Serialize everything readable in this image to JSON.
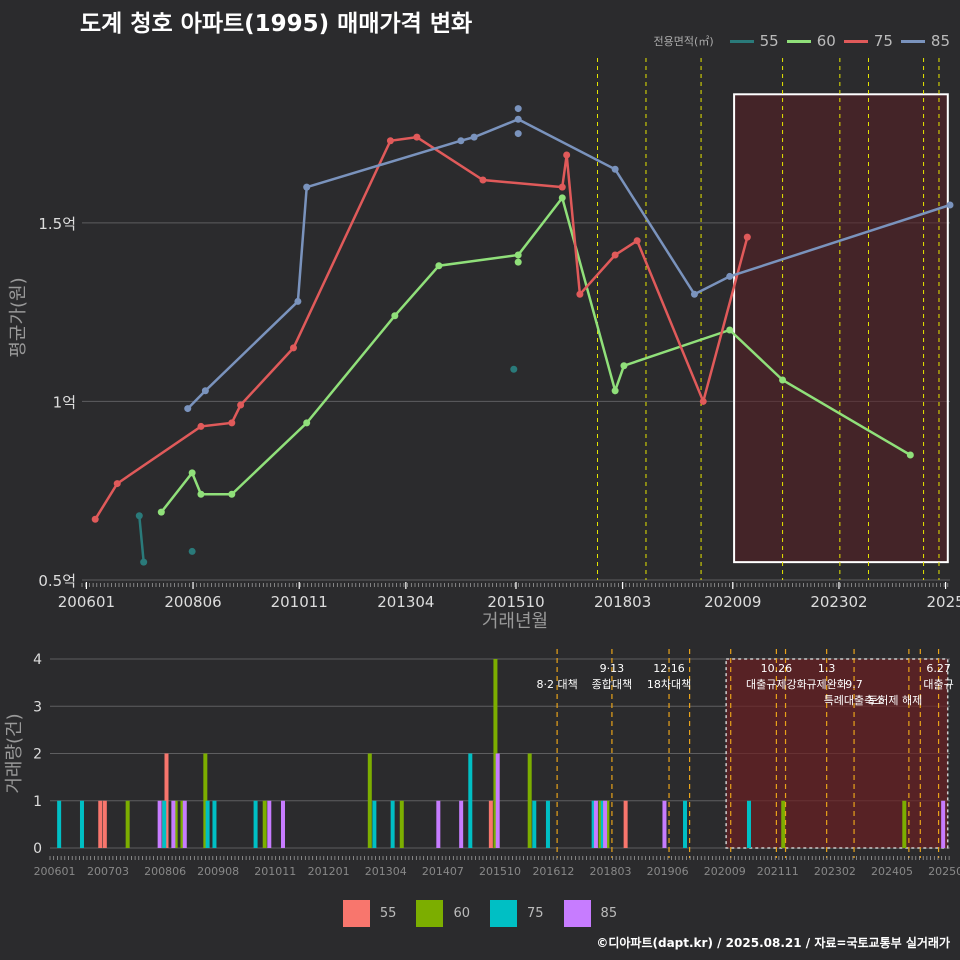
{
  "title": "도계 청호 아파트(1995) 매매가격 변화",
  "legend_top": {
    "title": "전용면적(㎡)",
    "items": [
      {
        "label": "55",
        "color": "#2a7a7a"
      },
      {
        "label": "60",
        "color": "#90e07a"
      },
      {
        "label": "75",
        "color": "#e05a5a"
      },
      {
        "label": "85",
        "color": "#7a93bd"
      }
    ]
  },
  "legend_bottom": {
    "items": [
      {
        "label": "55",
        "color": "#f8766d"
      },
      {
        "label": "60",
        "color": "#7cae00"
      },
      {
        "label": "75",
        "color": "#00bfc4"
      },
      {
        "label": "85",
        "color": "#c77cff"
      }
    ]
  },
  "footer": "©디아파트(dapt.kr) / 2025.08.21 / 자료=국토교통부 실거래가",
  "chart_data": [
    {
      "type": "line",
      "title": "도계 청호 아파트(1995) 매매가격 변화",
      "xlabel": "거래년월",
      "ylabel": "평균가(원)",
      "x_tick_labels": [
        "200601",
        "200806",
        "201011",
        "201304",
        "201510",
        "201803",
        "202009",
        "202302",
        "2025"
      ],
      "x_tick_values": [
        2006.0,
        2008.42,
        2010.83,
        2013.25,
        2015.75,
        2018.17,
        2020.67,
        2023.08,
        2025.5
      ],
      "xlim": [
        2005.9,
        2025.6
      ],
      "y_tick_labels": [
        "0.5억",
        "1억",
        "1.5억"
      ],
      "y_tick_values": [
        0.5,
        1.0,
        1.5
      ],
      "ylim": [
        0.5,
        1.97
      ],
      "highlight_x_range": [
        2020.7,
        2025.55
      ],
      "highlight_y_range": [
        0.55,
        1.86
      ],
      "vlines": [
        2017.6,
        2018.7,
        2019.95,
        2021.8,
        2023.1,
        2023.75,
        2025.0,
        2025.35
      ],
      "series": [
        {
          "name": "55",
          "color": "#2a7a7a",
          "points": [
            [
              2007.2,
              0.68
            ],
            [
              2007.3,
              0.55
            ]
          ],
          "extra_points": [
            [
              2008.4,
              0.58
            ],
            [
              2015.7,
              1.09
            ]
          ]
        },
        {
          "name": "60",
          "color": "#90e07a",
          "points": [
            [
              2007.7,
              0.69
            ],
            [
              2008.4,
              0.8
            ],
            [
              2008.6,
              0.74
            ],
            [
              2009.3,
              0.74
            ],
            [
              2011.0,
              0.94
            ],
            [
              2013.0,
              1.24
            ],
            [
              2014.0,
              1.38
            ],
            [
              2015.8,
              1.41
            ],
            [
              2016.8,
              1.57
            ],
            [
              2018.0,
              1.03
            ],
            [
              2018.2,
              1.1
            ],
            [
              2020.6,
              1.2
            ],
            [
              2021.8,
              1.06
            ],
            [
              2024.7,
              0.85
            ]
          ],
          "extra_points": [
            [
              2015.8,
              1.39
            ]
          ]
        },
        {
          "name": "75",
          "color": "#e05a5a",
          "points": [
            [
              2006.2,
              0.67
            ],
            [
              2006.7,
              0.77
            ],
            [
              2008.6,
              0.93
            ],
            [
              2009.3,
              0.94
            ],
            [
              2009.5,
              0.99
            ],
            [
              2010.7,
              1.15
            ],
            [
              2012.9,
              1.73
            ],
            [
              2013.5,
              1.74
            ],
            [
              2015.0,
              1.62
            ],
            [
              2016.8,
              1.6
            ],
            [
              2016.9,
              1.69
            ],
            [
              2017.2,
              1.3
            ],
            [
              2018.0,
              1.41
            ],
            [
              2018.5,
              1.45
            ],
            [
              2020.0,
              1.0
            ],
            [
              2021.0,
              1.46
            ]
          ],
          "extra_points": []
        },
        {
          "name": "85",
          "color": "#7a93bd",
          "points": [
            [
              2008.3,
              0.98
            ],
            [
              2008.7,
              1.03
            ],
            [
              2010.8,
              1.28
            ],
            [
              2011.0,
              1.6
            ],
            [
              2014.5,
              1.73
            ],
            [
              2014.8,
              1.74
            ],
            [
              2015.8,
              1.79
            ],
            [
              2018.0,
              1.65
            ],
            [
              2019.8,
              1.3
            ],
            [
              2020.6,
              1.35
            ],
            [
              2025.6,
              1.55
            ]
          ],
          "extra_points": [
            [
              2015.8,
              1.82
            ],
            [
              2015.8,
              1.75
            ]
          ]
        }
      ]
    },
    {
      "type": "bar",
      "title": "",
      "xlabel": "",
      "ylabel": "거래량(건)",
      "x_tick_labels": [
        "200601",
        "200703",
        "200806",
        "200908",
        "201011",
        "201201",
        "201304",
        "201407",
        "201510",
        "201612",
        "201803",
        "201906",
        "202009",
        "202111",
        "202302",
        "202405",
        "202508"
      ],
      "x_tick_values": [
        2006.0,
        2007.17,
        2008.42,
        2009.58,
        2010.83,
        2012.0,
        2013.25,
        2014.5,
        2015.75,
        2016.92,
        2018.17,
        2019.42,
        2020.67,
        2021.83,
        2023.08,
        2024.33,
        2025.58
      ],
      "xlim": [
        2005.9,
        2025.6
      ],
      "y_tick_labels": [
        "0",
        "1",
        "2",
        "3",
        "4"
      ],
      "y_tick_values": [
        0,
        1,
        2,
        3,
        4
      ],
      "ylim": [
        0,
        4.0
      ],
      "highlight_x_range": [
        2020.7,
        2025.55
      ],
      "vlines": [
        2017.0,
        2018.2,
        2019.45,
        2019.9,
        2020.8,
        2021.8,
        2022.0,
        2022.9,
        2023.5,
        2024.7,
        2024.95,
        2025.35
      ],
      "annotations": [
        {
          "text": "8·2 대책",
          "x": 2017.0,
          "row": 1
        },
        {
          "text": "9·13",
          "x": 2018.2,
          "row": 0
        },
        {
          "text": "종합대책",
          "x": 2018.2,
          "row": 1
        },
        {
          "text": "12·16",
          "x": 2019.45,
          "row": 0
        },
        {
          "text": "18차대책",
          "x": 2019.45,
          "row": 1
        },
        {
          "text": "10.26",
          "x": 2021.8,
          "row": 0
        },
        {
          "text": "대출규제강화",
          "x": 2021.8,
          "row": 1
        },
        {
          "text": "1.3",
          "x": 2022.9,
          "row": 0
        },
        {
          "text": "규제완화",
          "x": 2022.9,
          "row": 1
        },
        {
          "text": "9.7",
          "x": 2023.5,
          "row": 1
        },
        {
          "text": "특례대출축소",
          "x": 2023.5,
          "row": 2
        },
        {
          "text": "토허제 해제",
          "x": 2024.4,
          "row": 2
        },
        {
          "text": "6.27",
          "x": 2025.35,
          "row": 0
        },
        {
          "text": "대출규",
          "x": 2025.35,
          "row": 1
        }
      ],
      "series": [
        {
          "name": "55",
          "color": "#f8766d",
          "bars": [
            [
              2007.0,
              1
            ],
            [
              2007.1,
              1
            ],
            [
              2008.45,
              2
            ],
            [
              2008.4,
              1
            ],
            [
              2015.55,
              1
            ],
            [
              2018.5,
              1
            ]
          ]
        },
        {
          "name": "60",
          "color": "#7cae00",
          "bars": [
            [
              2007.6,
              1
            ],
            [
              2008.65,
              1
            ],
            [
              2008.8,
              1
            ],
            [
              2009.3,
              2
            ],
            [
              2010.6,
              1
            ],
            [
              2012.9,
              2
            ],
            [
              2013.6,
              1
            ],
            [
              2015.65,
              4
            ],
            [
              2016.4,
              2
            ],
            [
              2017.95,
              1
            ],
            [
              2018.1,
              1
            ],
            [
              2021.95,
              1
            ],
            [
              2024.6,
              1
            ]
          ]
        },
        {
          "name": "75",
          "color": "#00bfc4",
          "bars": [
            [
              2006.1,
              1
            ],
            [
              2006.6,
              1
            ],
            [
              2008.4,
              1
            ],
            [
              2009.35,
              1
            ],
            [
              2009.5,
              1
            ],
            [
              2010.4,
              1
            ],
            [
              2013.0,
              1
            ],
            [
              2013.4,
              1
            ],
            [
              2015.1,
              2
            ],
            [
              2016.5,
              1
            ],
            [
              2016.8,
              1
            ],
            [
              2017.8,
              1
            ],
            [
              2018.0,
              1
            ],
            [
              2019.8,
              1
            ],
            [
              2021.2,
              1
            ]
          ]
        },
        {
          "name": "85",
          "color": "#c77cff",
          "bars": [
            [
              2008.3,
              1
            ],
            [
              2008.6,
              1
            ],
            [
              2008.85,
              1
            ],
            [
              2010.7,
              1
            ],
            [
              2011.0,
              1
            ],
            [
              2014.4,
              1
            ],
            [
              2014.9,
              1
            ],
            [
              2015.7,
              2
            ],
            [
              2017.85,
              1
            ],
            [
              2018.05,
              1
            ],
            [
              2019.35,
              1
            ],
            [
              2025.45,
              1
            ]
          ]
        }
      ]
    }
  ]
}
